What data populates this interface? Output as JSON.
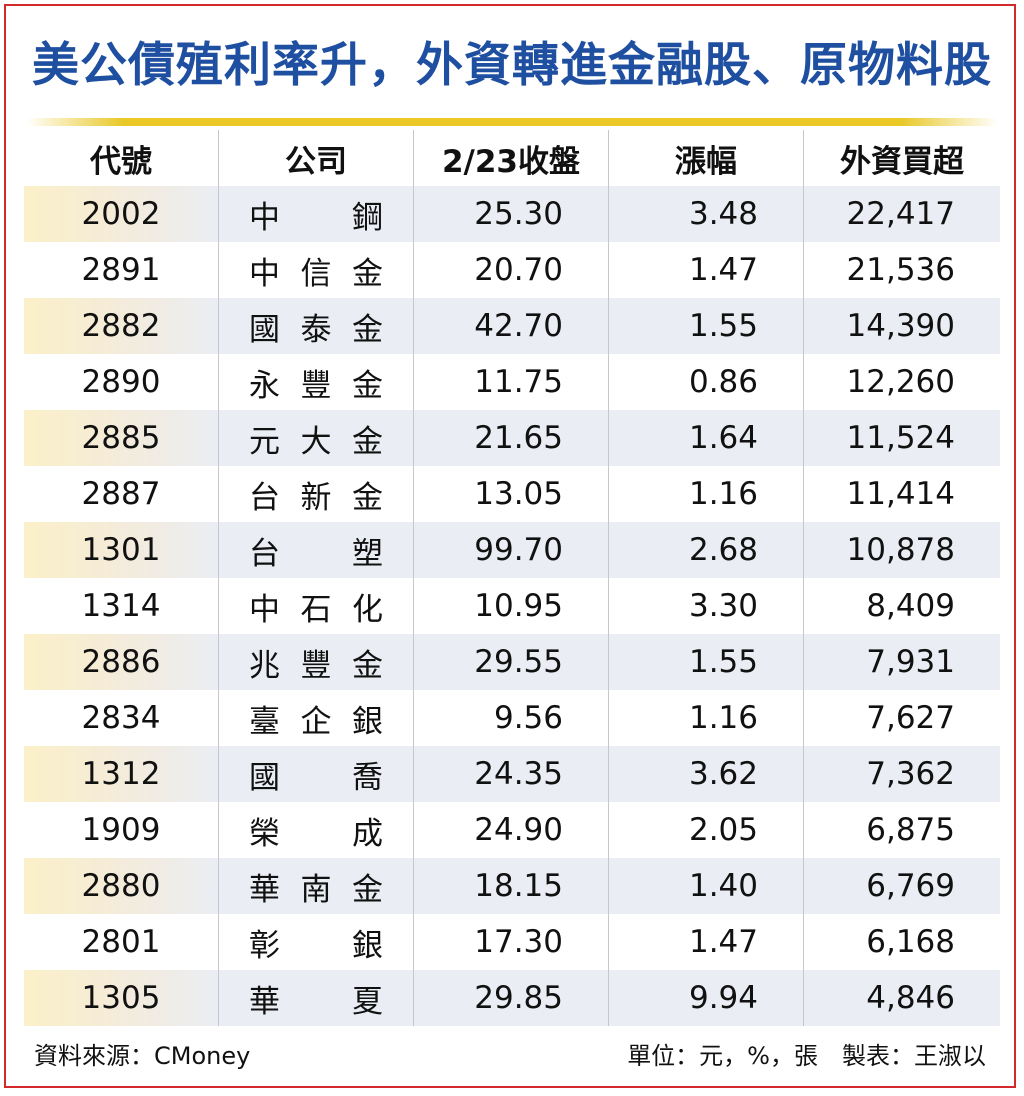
{
  "title": "美公債殖利率升，外資轉進金融股、原物料股",
  "chart_data": {
    "type": "table",
    "columns": [
      "代號",
      "公司",
      "2/23收盤",
      "漲幅",
      "外資買超"
    ],
    "rows": [
      {
        "code": "2002",
        "name": [
          "中",
          "鋼"
        ],
        "close": "25.30",
        "change": "3.48",
        "foreign_buy": "22,417"
      },
      {
        "code": "2891",
        "name": [
          "中",
          "信",
          "金"
        ],
        "close": "20.70",
        "change": "1.47",
        "foreign_buy": "21,536"
      },
      {
        "code": "2882",
        "name": [
          "國",
          "泰",
          "金"
        ],
        "close": "42.70",
        "change": "1.55",
        "foreign_buy": "14,390"
      },
      {
        "code": "2890",
        "name": [
          "永",
          "豐",
          "金"
        ],
        "close": "11.75",
        "change": "0.86",
        "foreign_buy": "12,260"
      },
      {
        "code": "2885",
        "name": [
          "元",
          "大",
          "金"
        ],
        "close": "21.65",
        "change": "1.64",
        "foreign_buy": "11,524"
      },
      {
        "code": "2887",
        "name": [
          "台",
          "新",
          "金"
        ],
        "close": "13.05",
        "change": "1.16",
        "foreign_buy": "11,414"
      },
      {
        "code": "1301",
        "name": [
          "台",
          "塑"
        ],
        "close": "99.70",
        "change": "2.68",
        "foreign_buy": "10,878"
      },
      {
        "code": "1314",
        "name": [
          "中",
          "石",
          "化"
        ],
        "close": "10.95",
        "change": "3.30",
        "foreign_buy": "8,409"
      },
      {
        "code": "2886",
        "name": [
          "兆",
          "豐",
          "金"
        ],
        "close": "29.55",
        "change": "1.55",
        "foreign_buy": "7,931"
      },
      {
        "code": "2834",
        "name": [
          "臺",
          "企",
          "銀"
        ],
        "close": "9.56",
        "change": "1.16",
        "foreign_buy": "7,627"
      },
      {
        "code": "1312",
        "name": [
          "國",
          "喬"
        ],
        "close": "24.35",
        "change": "3.62",
        "foreign_buy": "7,362"
      },
      {
        "code": "1909",
        "name": [
          "榮",
          "成"
        ],
        "close": "24.90",
        "change": "2.05",
        "foreign_buy": "6,875"
      },
      {
        "code": "2880",
        "name": [
          "華",
          "南",
          "金"
        ],
        "close": "18.15",
        "change": "1.40",
        "foreign_buy": "6,769"
      },
      {
        "code": "2801",
        "name": [
          "彰",
          "銀"
        ],
        "close": "17.30",
        "change": "1.47",
        "foreign_buy": "6,168"
      },
      {
        "code": "1305",
        "name": [
          "華",
          "夏"
        ],
        "close": "29.85",
        "change": "9.94",
        "foreign_buy": "4,846"
      }
    ]
  },
  "footer": {
    "source": "資料來源：CMoney",
    "unit_credit": "單位：元，%，張　製表：王淑以"
  }
}
